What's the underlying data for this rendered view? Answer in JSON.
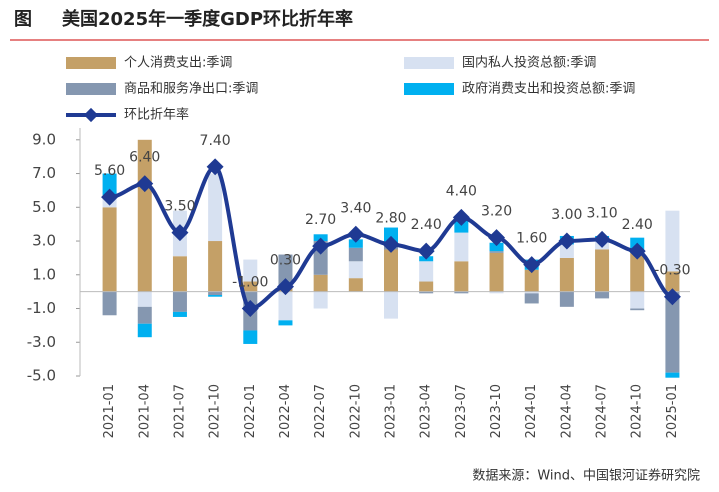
{
  "chart_data": {
    "type": "stacked_bar_line",
    "figure_label": "图",
    "title": "美国2025年一季度GDP环比折年率",
    "source": "数据来源：Wind、中国银河证券研究院",
    "categories": [
      "2021-01",
      "2021-04",
      "2021-07",
      "2021-10",
      "2022-01",
      "2022-04",
      "2022-07",
      "2022-10",
      "2023-01",
      "2023-04",
      "2023-07",
      "2023-10",
      "2024-01",
      "2024-04",
      "2024-07",
      "2024-10",
      "2025-01"
    ],
    "series": [
      {
        "name": "个人消费支出:季调",
        "color": "#c4a067",
        "values": [
          5.0,
          9.0,
          2.1,
          3.0,
          0.6,
          0.2,
          1.0,
          0.8,
          2.5,
          0.6,
          1.8,
          2.3,
          1.3,
          2.0,
          2.5,
          2.3,
          1.2
        ]
      },
      {
        "name": "国内私人投资总额:季调",
        "color": "#d7e1f1",
        "values": [
          0.7,
          -0.9,
          2.7,
          4.0,
          1.3,
          -1.7,
          -1.0,
          1.0,
          -1.6,
          1.2,
          1.7,
          -0.1,
          -0.1,
          0.8,
          0.5,
          -1.0,
          3.6
        ]
      },
      {
        "name": "商品和服务净出口:季调",
        "color": "#8597b0",
        "values": [
          -1.4,
          -1.0,
          -1.2,
          -0.2,
          -2.3,
          2.0,
          2.0,
          0.8,
          0.3,
          -0.1,
          -0.1,
          0.1,
          -0.6,
          -0.9,
          -0.4,
          -0.1,
          -4.8
        ]
      },
      {
        "name": "政府消费支出和投资总额:季调",
        "color": "#00b0f0",
        "values": [
          1.3,
          -0.8,
          -0.3,
          -0.1,
          -0.8,
          -0.3,
          0.4,
          0.5,
          1.0,
          0.3,
          0.8,
          0.5,
          0.6,
          0.5,
          0.3,
          0.9,
          -0.3
        ]
      }
    ],
    "line": {
      "name": "环比折年率",
      "color": "#1f3a93",
      "values": [
        5.6,
        6.4,
        3.5,
        7.4,
        -1.0,
        0.3,
        2.7,
        3.4,
        2.8,
        2.4,
        4.4,
        3.2,
        1.6,
        3.0,
        3.1,
        2.4,
        -0.3
      ],
      "value_labels": [
        "5.60",
        "6.40",
        "3.50",
        "7.40",
        "-1.00",
        "0.30",
        "2.70",
        "3.40",
        "2.80",
        "2.40",
        "4.40",
        "3.20",
        "1.60",
        "3.00",
        "3.10",
        "2.40",
        "-0.30"
      ]
    },
    "ylim": [
      -5,
      9.7
    ],
    "yticks": [
      {
        "value": 9,
        "label": "9.0"
      },
      {
        "value": 7,
        "label": "7.0"
      },
      {
        "value": 5,
        "label": "5.0"
      },
      {
        "value": 3,
        "label": "3.0"
      },
      {
        "value": 1,
        "label": "1.0"
      },
      {
        "value": -1,
        "label": "-1.0"
      },
      {
        "value": -3,
        "label": "-3.0"
      },
      {
        "value": -5,
        "label": "-5.0"
      }
    ]
  }
}
